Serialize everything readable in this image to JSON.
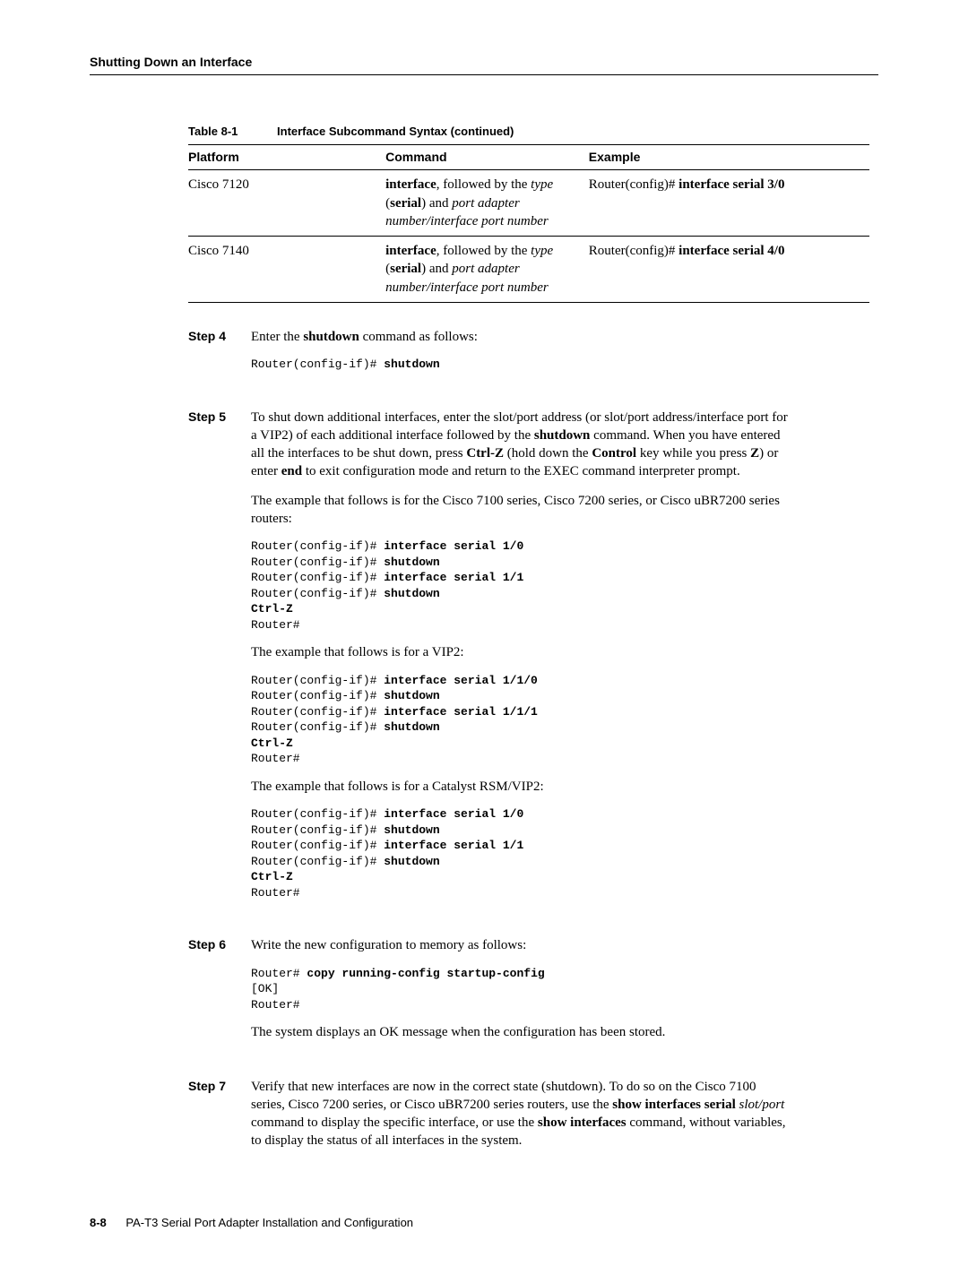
{
  "running_head": "Shutting Down an Interface",
  "table": {
    "caption_num": "Table 8-1",
    "caption_title": "Interface Subcommand Syntax (continued)",
    "headers": {
      "platform": "Platform",
      "command": "Command",
      "example": "Example"
    },
    "rows": [
      {
        "platform": "Cisco 7120",
        "cmd_kw": "interface",
        "cmd_mid1": ", followed by the ",
        "cmd_type": "type",
        "cmd_open": " (",
        "cmd_serial": "serial",
        "cmd_mid2": ") and ",
        "cmd_rest": "port adapter number/interface port number",
        "ex_prefix": "Router(config)# ",
        "ex_cmd": "interface serial 3/0"
      },
      {
        "platform": "Cisco 7140",
        "cmd_kw": "interface",
        "cmd_mid1": ", followed by the ",
        "cmd_type": "type",
        "cmd_open": " (",
        "cmd_serial": "serial",
        "cmd_mid2": ") and ",
        "cmd_rest": "port adapter number/interface port number",
        "ex_prefix": "Router(config)# ",
        "ex_cmd": "interface serial 4/0"
      }
    ]
  },
  "steps": {
    "s4": {
      "label": "Step 4",
      "t1": "Enter the ",
      "kw": "shutdown",
      "t2": " command as follows:",
      "code_pre": "Router(config-if)# ",
      "code_b": "shutdown"
    },
    "s5": {
      "label": "Step 5",
      "p1a": "To shut down additional interfaces, enter the slot/port address (or slot/port address/interface port for a VIP2) of each additional interface followed by the ",
      "kw_shut": "shutdown",
      "p1b": " command. When you have entered all the interfaces to be shut down, press ",
      "kw_ctrlz": "Ctrl-Z",
      "p1c": " (hold down the ",
      "kw_ctrl": "Control",
      "p1d": " key while you press ",
      "kw_z": "Z",
      "p1e": ") or enter ",
      "kw_end": "end",
      "p1f": " to exit configuration mode and return to the EXEC command interpreter prompt.",
      "p2": "The example that follows is for the Cisco 7100 series, Cisco 7200 series, or Cisco uBR7200 series routers:",
      "code2": {
        "l1p": "Router(config-if)# ",
        "l1b": "interface serial 1/0",
        "l2p": "Router(config-if)# ",
        "l2b": "shutdown",
        "l3p": "Router(config-if)# ",
        "l3b": "interface serial 1/1",
        "l4p": "Router(config-if)# ",
        "l4b": "shutdown",
        "l5b": "Ctrl-Z",
        "l6p": "Router#"
      },
      "p3": "The example that follows is for a VIP2:",
      "code3": {
        "l1p": "Router(config-if)# ",
        "l1b": "interface serial 1/1/0",
        "l2p": "Router(config-if)# ",
        "l2b": "shutdown",
        "l3p": "Router(config-if)# ",
        "l3b": "interface serial 1/1/1",
        "l4p": "Router(config-if)# ",
        "l4b": "shutdown",
        "l5b": "Ctrl-Z",
        "l6p": "Router#"
      },
      "p4": "The example that follows is for a Catalyst RSM/VIP2:",
      "code4": {
        "l1p": "Router(config-if)# ",
        "l1b": "interface serial 1/0",
        "l2p": "Router(config-if)# ",
        "l2b": "shutdown",
        "l3p": "Router(config-if)# ",
        "l3b": "interface serial 1/1",
        "l4p": "Router(config-if)# ",
        "l4b": "shutdown",
        "l5b": "Ctrl-Z",
        "l6p": "Router#"
      }
    },
    "s6": {
      "label": "Step 6",
      "p1": "Write the new configuration to memory as follows:",
      "code": {
        "l1p": "Router# ",
        "l1b": "copy running-config startup-config",
        "l2p": "[OK]",
        "l3p": "Router#"
      },
      "p2": "The system displays an OK message when the configuration has been stored."
    },
    "s7": {
      "label": "Step 7",
      "t1": "Verify that new interfaces are now in the correct state (shutdown). To do so on the Cisco 7100 series, Cisco 7200 series, or Cisco uBR7200 series routers, use the ",
      "kw1": "show interfaces serial ",
      "em1": "slot/port",
      "t2": " command to display the specific interface, or use the ",
      "kw2": "show interfaces",
      "t3": " command, without variables, to display the status of all interfaces in the system."
    }
  },
  "footer": {
    "pagenum": "8-8",
    "title": "PA-T3 Serial Port Adapter Installation and Configuration"
  }
}
